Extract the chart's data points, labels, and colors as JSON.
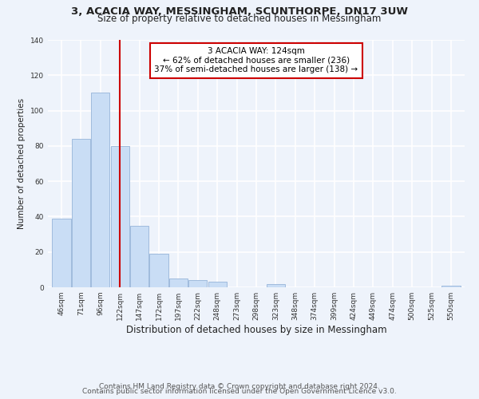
{
  "title_line1": "3, ACACIA WAY, MESSINGHAM, SCUNTHORPE, DN17 3UW",
  "title_line2": "Size of property relative to detached houses in Messingham",
  "xlabel": "Distribution of detached houses by size in Messingham",
  "ylabel": "Number of detached properties",
  "bar_labels": [
    "46sqm",
    "71sqm",
    "96sqm",
    "122sqm",
    "147sqm",
    "172sqm",
    "197sqm",
    "222sqm",
    "248sqm",
    "273sqm",
    "298sqm",
    "323sqm",
    "348sqm",
    "374sqm",
    "399sqm",
    "424sqm",
    "449sqm",
    "474sqm",
    "500sqm",
    "525sqm",
    "550sqm"
  ],
  "bar_values": [
    39,
    84,
    110,
    80,
    35,
    19,
    5,
    4,
    3,
    0,
    0,
    2,
    0,
    0,
    0,
    0,
    0,
    0,
    0,
    0,
    1
  ],
  "bar_color": "#c9ddf5",
  "bar_edge_color": "#a0bbdd",
  "vline_x": 3,
  "vline_color": "#cc0000",
  "annotation_text": "3 ACACIA WAY: 124sqm\n← 62% of detached houses are smaller (236)\n37% of semi-detached houses are larger (138) →",
  "annotation_box_edgecolor": "#cc0000",
  "annotation_box_facecolor": "white",
  "ylim": [
    0,
    140
  ],
  "yticks": [
    0,
    20,
    40,
    60,
    80,
    100,
    120,
    140
  ],
  "footer_line1": "Contains HM Land Registry data © Crown copyright and database right 2024.",
  "footer_line2": "Contains public sector information licensed under the Open Government Licence v3.0.",
  "background_color": "#eef3fb",
  "grid_color": "#ffffff",
  "title_fontsize": 9.5,
  "subtitle_fontsize": 8.5,
  "xlabel_fontsize": 8.5,
  "ylabel_fontsize": 7.5,
  "tick_fontsize": 6.5,
  "annotation_fontsize": 7.5,
  "footer_fontsize": 6.5
}
